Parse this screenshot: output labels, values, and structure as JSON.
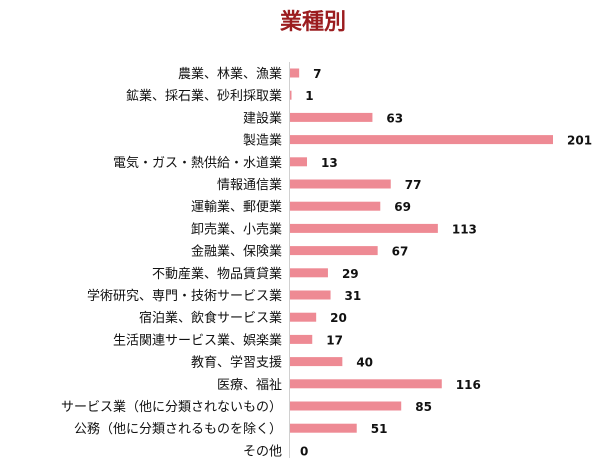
{
  "chart_data": {
    "type": "bar",
    "orientation": "horizontal",
    "title": "業種別",
    "categories": [
      "農業、林業、漁業",
      "鉱業、採石業、砂利採取業",
      "建設業",
      "製造業",
      "電気・ガス・熱供給・水道業",
      "情報通信業",
      "運輸業、郵便業",
      "卸売業、小売業",
      "金融業、保険業",
      "不動産業、物品賃貸業",
      "学術研究、専門・技術サービス業",
      "宿泊業、飲食サービス業",
      "生活関連サービス業、娯楽業",
      "教育、学習支援",
      "医療、福祉",
      "サービス業（他に分類されないもの）",
      "公務（他に分類されるものを除く）",
      "その他"
    ],
    "values": [
      7,
      1,
      63,
      201,
      13,
      77,
      69,
      113,
      67,
      29,
      31,
      20,
      17,
      40,
      116,
      85,
      51,
      0
    ],
    "xlim": [
      0,
      201
    ],
    "grid": false,
    "data_labels": true,
    "bar_color": "#ee8a94",
    "title_color": "#9b1c1f"
  }
}
